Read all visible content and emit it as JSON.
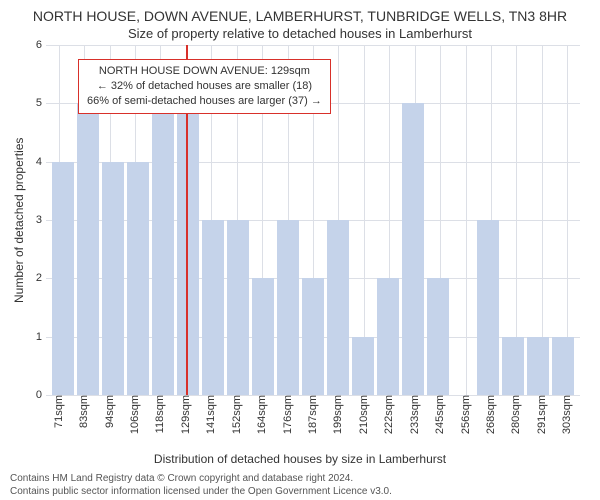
{
  "chart": {
    "type": "histogram",
    "title_main": "NORTH HOUSE, DOWN AVENUE, LAMBERHURST, TUNBRIDGE WELLS, TN3 8HR",
    "title_sub": "Size of property relative to detached houses in Lamberhurst",
    "title_fontsize": 14,
    "subtitle_fontsize": 13,
    "y_axis_label": "Number of detached properties",
    "x_axis_label": "Distribution of detached houses by size in Lamberhurst",
    "label_fontsize": 12,
    "tick_fontsize": 11,
    "ylim": [
      0,
      6
    ],
    "yticks": [
      0,
      1,
      2,
      3,
      4,
      5,
      6
    ],
    "background_color": "#ffffff",
    "grid_color": "#dcdfe6",
    "bar_color": "#c5d3ea",
    "marker_color": "#d8302a",
    "text_color": "#333333",
    "info_box_border": "#d8302a",
    "categories": [
      "71sqm",
      "83sqm",
      "94sqm",
      "106sqm",
      "118sqm",
      "129sqm",
      "141sqm",
      "152sqm",
      "164sqm",
      "176sqm",
      "187sqm",
      "199sqm",
      "210sqm",
      "222sqm",
      "233sqm",
      "245sqm",
      "256sqm",
      "268sqm",
      "280sqm",
      "291sqm",
      "303sqm"
    ],
    "values": [
      4,
      5,
      4,
      4,
      5,
      5,
      3,
      3,
      2,
      3,
      2,
      3,
      1,
      2,
      5,
      2,
      0,
      3,
      1,
      1,
      1
    ],
    "marker_index": 5,
    "info_box": {
      "line1": "NORTH HOUSE DOWN AVENUE: 129sqm",
      "line2": "← 32% of detached houses are smaller (18)",
      "line3": "66% of semi-detached houses are larger (37) →",
      "top_percent": 4,
      "left_percent": 6
    }
  },
  "footer": {
    "line1": "Contains HM Land Registry data © Crown copyright and database right 2024.",
    "line2": "Contains public sector information licensed under the Open Government Licence v3.0."
  }
}
